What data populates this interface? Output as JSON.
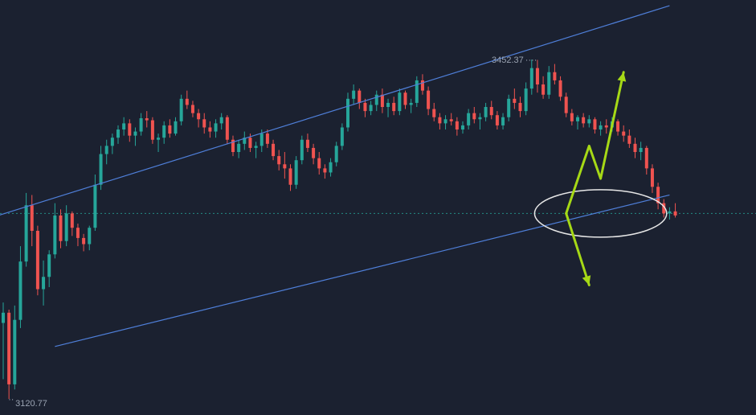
{
  "chart_data": {
    "type": "candlestick",
    "colors": {
      "background": "#1b2130",
      "up": "#26a69a",
      "down": "#ef5350",
      "channel": "#4f7fd9",
      "arrows": "#a6d916",
      "ellipse": "#e6e6e6",
      "price_line": "#26a69a",
      "label": "#9aa3b2"
    },
    "ylim": [
      3120.77,
      3452.37
    ],
    "range_markers": {
      "high": "3452.37",
      "low": "3120.77"
    },
    "price_line_level": 3302,
    "candles": [
      [
        3195,
        3215,
        3140,
        3205
      ],
      [
        3205,
        3208,
        3120.77,
        3135
      ],
      [
        3135,
        3212,
        3130,
        3198
      ],
      [
        3198,
        3270,
        3190,
        3255
      ],
      [
        3255,
        3322,
        3250,
        3310
      ],
      [
        3310,
        3320,
        3270,
        3285
      ],
      [
        3285,
        3290,
        3222,
        3228
      ],
      [
        3228,
        3256,
        3212,
        3240
      ],
      [
        3240,
        3266,
        3230,
        3262
      ],
      [
        3262,
        3312,
        3258,
        3300
      ],
      [
        3300,
        3306,
        3268,
        3275
      ],
      [
        3275,
        3310,
        3270,
        3302
      ],
      [
        3302,
        3304,
        3280,
        3288
      ],
      [
        3288,
        3292,
        3270,
        3278
      ],
      [
        3278,
        3282,
        3265,
        3272
      ],
      [
        3272,
        3290,
        3266,
        3288
      ],
      [
        3288,
        3340,
        3285,
        3330
      ],
      [
        3330,
        3368,
        3325,
        3360
      ],
      [
        3360,
        3374,
        3350,
        3368
      ],
      [
        3368,
        3380,
        3360,
        3376
      ],
      [
        3376,
        3388,
        3370,
        3384
      ],
      [
        3384,
        3396,
        3378,
        3390
      ],
      [
        3390,
        3394,
        3372,
        3378
      ],
      [
        3378,
        3386,
        3368,
        3382
      ],
      [
        3382,
        3400,
        3378,
        3395
      ],
      [
        3395,
        3402,
        3386,
        3393
      ],
      [
        3393,
        3396,
        3370,
        3374
      ],
      [
        3374,
        3380,
        3362,
        3376
      ],
      [
        3376,
        3392,
        3370,
        3388
      ],
      [
        3388,
        3394,
        3376,
        3380
      ],
      [
        3380,
        3396,
        3378,
        3392
      ],
      [
        3392,
        3418,
        3388,
        3414
      ],
      [
        3414,
        3422,
        3404,
        3408
      ],
      [
        3408,
        3412,
        3396,
        3400
      ],
      [
        3400,
        3404,
        3386,
        3394
      ],
      [
        3394,
        3400,
        3380,
        3386
      ],
      [
        3386,
        3392,
        3376,
        3382
      ],
      [
        3382,
        3394,
        3376,
        3390
      ],
      [
        3390,
        3400,
        3384,
        3396
      ],
      [
        3396,
        3398,
        3370,
        3374
      ],
      [
        3374,
        3378,
        3358,
        3362
      ],
      [
        3362,
        3374,
        3356,
        3370
      ],
      [
        3370,
        3382,
        3364,
        3376
      ],
      [
        3376,
        3380,
        3362,
        3366
      ],
      [
        3366,
        3372,
        3356,
        3368
      ],
      [
        3368,
        3384,
        3362,
        3380
      ],
      [
        3380,
        3384,
        3366,
        3370
      ],
      [
        3370,
        3374,
        3354,
        3358
      ],
      [
        3358,
        3364,
        3344,
        3350
      ],
      [
        3350,
        3362,
        3336,
        3346
      ],
      [
        3346,
        3350,
        3324,
        3330
      ],
      [
        3330,
        3358,
        3326,
        3354
      ],
      [
        3354,
        3378,
        3350,
        3374
      ],
      [
        3374,
        3380,
        3362,
        3366
      ],
      [
        3366,
        3370,
        3350,
        3356
      ],
      [
        3356,
        3362,
        3340,
        3346
      ],
      [
        3346,
        3350,
        3336,
        3342
      ],
      [
        3342,
        3356,
        3338,
        3352
      ],
      [
        3352,
        3372,
        3348,
        3368
      ],
      [
        3368,
        3390,
        3364,
        3386
      ],
      [
        3386,
        3420,
        3382,
        3414
      ],
      [
        3414,
        3428,
        3408,
        3422
      ],
      [
        3422,
        3424,
        3404,
        3410
      ],
      [
        3410,
        3414,
        3396,
        3402
      ],
      [
        3402,
        3412,
        3398,
        3408
      ],
      [
        3408,
        3422,
        3402,
        3418
      ],
      [
        3418,
        3424,
        3400,
        3406
      ],
      [
        3406,
        3414,
        3396,
        3410
      ],
      [
        3410,
        3416,
        3398,
        3402
      ],
      [
        3402,
        3424,
        3398,
        3420
      ],
      [
        3420,
        3422,
        3404,
        3408
      ],
      [
        3408,
        3414,
        3400,
        3410
      ],
      [
        3410,
        3436,
        3406,
        3432
      ],
      [
        3432,
        3438,
        3418,
        3422
      ],
      [
        3422,
        3426,
        3398,
        3404
      ],
      [
        3404,
        3410,
        3392,
        3396
      ],
      [
        3396,
        3400,
        3384,
        3390
      ],
      [
        3390,
        3398,
        3384,
        3394
      ],
      [
        3394,
        3400,
        3388,
        3392
      ],
      [
        3392,
        3396,
        3378,
        3384
      ],
      [
        3384,
        3392,
        3380,
        3388
      ],
      [
        3388,
        3404,
        3384,
        3400
      ],
      [
        3400,
        3406,
        3390,
        3394
      ],
      [
        3394,
        3400,
        3384,
        3396
      ],
      [
        3396,
        3410,
        3392,
        3406
      ],
      [
        3406,
        3412,
        3394,
        3398
      ],
      [
        3398,
        3402,
        3384,
        3388
      ],
      [
        3388,
        3400,
        3384,
        3396
      ],
      [
        3396,
        3418,
        3392,
        3414
      ],
      [
        3414,
        3424,
        3404,
        3410
      ],
      [
        3410,
        3416,
        3396,
        3402
      ],
      [
        3402,
        3430,
        3398,
        3424
      ],
      [
        3424,
        3452.37,
        3418,
        3444
      ],
      [
        3444,
        3452,
        3420,
        3428
      ],
      [
        3428,
        3436,
        3414,
        3418
      ],
      [
        3418,
        3446,
        3414,
        3440
      ],
      [
        3440,
        3448,
        3428,
        3432
      ],
      [
        3432,
        3436,
        3412,
        3416
      ],
      [
        3416,
        3420,
        3396,
        3400
      ],
      [
        3400,
        3404,
        3388,
        3392
      ],
      [
        3392,
        3398,
        3384,
        3396
      ],
      [
        3396,
        3400,
        3386,
        3390
      ],
      [
        3390,
        3398,
        3386,
        3394
      ],
      [
        3394,
        3396,
        3380,
        3384
      ],
      [
        3384,
        3392,
        3378,
        3388
      ],
      [
        3388,
        3394,
        3380,
        3386
      ],
      [
        3386,
        3396,
        3382,
        3392
      ],
      [
        3392,
        3394,
        3378,
        3382
      ],
      [
        3382,
        3388,
        3372,
        3378
      ],
      [
        3378,
        3384,
        3366,
        3370
      ],
      [
        3370,
        3376,
        3356,
        3362
      ],
      [
        3362,
        3372,
        3354,
        3366
      ],
      [
        3366,
        3368,
        3340,
        3346
      ],
      [
        3346,
        3350,
        3322,
        3328
      ],
      [
        3328,
        3332,
        3306,
        3312
      ],
      [
        3312,
        3316,
        3298,
        3302
      ],
      [
        3302,
        3308,
        3296,
        3304
      ],
      [
        3304,
        3312,
        3298,
        3300
      ]
    ],
    "channel_lines": [
      {
        "name": "upper",
        "x1": -2,
        "y1": 3298,
        "x2": 116,
        "y2": 3505
      },
      {
        "name": "lower",
        "x1": 9,
        "y1": 3172,
        "x2": 116,
        "y2": 3320
      }
    ],
    "scenario_arrows": [
      {
        "name": "bullish",
        "points": [
          [
            98,
            3302
          ],
          [
            102,
            3368
          ],
          [
            104,
            3336
          ],
          [
            108,
            3440
          ]
        ]
      },
      {
        "name": "bearish",
        "points": [
          [
            98,
            3302
          ],
          [
            102,
            3232
          ]
        ]
      }
    ],
    "focus_ellipse": {
      "cx": 104,
      "cy": 3302,
      "rx": 10,
      "ry": 16
    }
  }
}
